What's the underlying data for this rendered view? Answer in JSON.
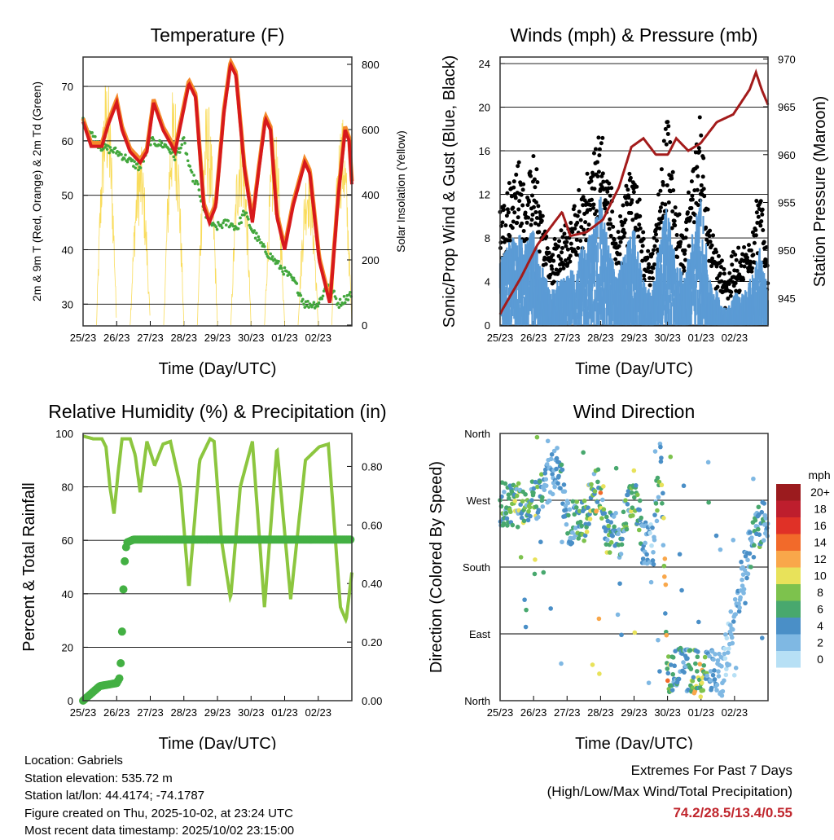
{
  "footer": {
    "location": "Location: Gabriels",
    "elevation": "Station elevation: 535.72 m",
    "latlon": "Station lat/lon: 44.4174; -74.1787",
    "created": "Figure created on Thu, 2025-10-02, at 23:24 UTC",
    "recent": "Most recent data timestamp: 2025/10/02 23:15:00",
    "extremes_title": "Extremes For Past 7 Days",
    "extremes_sub": "(High/Low/Max Wind/Total Precipitation)",
    "extremes_value": "74.2/28.5/13.4/0.55"
  },
  "colors": {
    "red": "#d7191c",
    "orange": "#f58a2b",
    "green": "#43a73d",
    "yellow": "#f9dc5c",
    "black": "#000000",
    "blue": "#5b9bd5",
    "maroon": "#a31b1b",
    "rh": "#8cc63f",
    "precip": "#43b043"
  },
  "chart_data": [
    {
      "type": "line",
      "title": "Temperature (F)",
      "xlabel": "Time (Day/UTC)",
      "ylabel": "2m & 9m T (Red, Orange) & 2m Td (Green)",
      "ylabel_right": "Solar Insolation (Yellow)",
      "xticks": [
        "25/23",
        "26/23",
        "27/23",
        "28/23",
        "29/23",
        "30/23",
        "01/23",
        "02/23"
      ],
      "yticks": [
        30,
        40,
        50,
        60,
        70
      ],
      "yticks_right": [
        0,
        200,
        400,
        600,
        800
      ],
      "xlim": [
        0,
        8
      ],
      "ylim": [
        26,
        75.4
      ],
      "ylim_right": [
        -2.5,
        822.5
      ],
      "series": [
        {
          "name": "2m T",
          "x": [
            0,
            0.24,
            0.56,
            0.75,
            1.0,
            1.16,
            1.4,
            1.7,
            1.9,
            2.1,
            2.38,
            2.74,
            3.15,
            3.35,
            3.59,
            3.76,
            3.95,
            4.19,
            4.39,
            4.55,
            4.8,
            5.04,
            5.24,
            5.43,
            5.58,
            5.77,
            6.0,
            6.25,
            6.6,
            6.75,
            7.03,
            7.35,
            7.6,
            7.8,
            7.92,
            8.0
          ],
          "y": [
            63.5,
            59,
            59,
            63,
            67,
            62,
            58,
            56,
            58,
            67,
            62,
            58,
            70.5,
            68,
            48,
            45,
            48,
            65,
            74,
            72,
            55,
            45,
            55,
            64,
            62,
            46,
            40,
            48,
            56,
            54,
            38,
            30,
            50,
            62,
            60,
            52
          ]
        },
        {
          "name": "2m Td",
          "x": [
            0,
            0.5,
            1.0,
            1.7,
            2.0,
            2.5,
            2.74,
            3.0,
            3.2,
            3.4,
            3.6,
            3.9,
            4.3,
            4.6,
            4.8,
            5.0,
            5.4,
            5.7,
            6.0,
            6.3,
            6.6,
            7.0,
            7.3,
            7.6,
            8.0
          ],
          "y": [
            63.5,
            59,
            58,
            55,
            60,
            59,
            57,
            60,
            54,
            52,
            47,
            44,
            45,
            44,
            47,
            44,
            40,
            38,
            36,
            34,
            30,
            30,
            34,
            30,
            32
          ]
        },
        {
          "name": "Solar Insolation",
          "day_peak_x": [
            0.7,
            1.7,
            2.7,
            3.7,
            4.7,
            5.7,
            6.7,
            7.7
          ],
          "day_peak_y": [
            780,
            560,
            740,
            700,
            640,
            600,
            520,
            650
          ]
        }
      ]
    },
    {
      "type": "scatter",
      "title": "Winds (mph) & Pressure (mb)",
      "xlabel": "Time (Day/UTC)",
      "ylabel": "Sonic/Prop Wind & Gust (Blue, Black)",
      "ylabel_right": "Station Pressure (Maroon)",
      "xticks": [
        "25/23",
        "26/23",
        "27/23",
        "28/23",
        "29/23",
        "30/23",
        "01/23",
        "02/23"
      ],
      "yticks": [
        0,
        4,
        8,
        12,
        16,
        20,
        24
      ],
      "yticks_right": [
        945,
        950,
        955,
        960,
        965,
        970
      ],
      "xlim": [
        0,
        8
      ],
      "ylim": [
        -0.07,
        24.6
      ],
      "ylim_right": [
        942.1,
        970.2
      ],
      "series": [
        {
          "name": "Wind",
          "x": [
            0,
            0.25,
            0.5,
            0.75,
            1,
            1.25,
            1.5,
            1.75,
            2,
            2.25,
            2.5,
            2.75,
            3,
            3.25,
            3.5,
            3.75,
            4,
            4.25,
            4.5,
            4.75,
            5,
            5.25,
            5.5,
            5.75,
            6,
            6.25,
            6.5,
            6.75,
            7,
            7.25,
            7.5,
            7.75,
            8
          ],
          "y": [
            4,
            5,
            6,
            5,
            6,
            4,
            2,
            3,
            3,
            4,
            5,
            6,
            8,
            5,
            3,
            5,
            6,
            3,
            2,
            5,
            8,
            4,
            3,
            6,
            8,
            3,
            2,
            1,
            2,
            2,
            3,
            5,
            2
          ]
        },
        {
          "name": "Gust",
          "max": 13.4
        },
        {
          "name": "Pressure",
          "x": [
            0,
            0.07,
            0.63,
            1.12,
            1.85,
            2.1,
            2.58,
            3.07,
            3.55,
            3.92,
            4.28,
            4.65,
            5.01,
            5.26,
            5.62,
            5.99,
            6.47,
            6.96,
            7.45,
            7.64,
            7.81,
            8.0
          ],
          "y": [
            943.3,
            943.8,
            947.2,
            950.6,
            954,
            951.5,
            951.9,
            953.2,
            956.6,
            960.8,
            961.7,
            960,
            960,
            961.7,
            960.4,
            961.2,
            963.4,
            964.2,
            966.8,
            968.6,
            966.8,
            965.2
          ]
        }
      ]
    },
    {
      "type": "line",
      "title": "Relative Humidity (%) & Precipitation (in)",
      "xlabel": "Time (Day/UTC)",
      "ylabel": "Percent & Total Rainfall",
      "xticks": [
        "25/23",
        "26/23",
        "27/23",
        "28/23",
        "29/23",
        "30/23",
        "01/23",
        "02/23"
      ],
      "yticks": [
        0,
        20,
        40,
        60,
        80,
        100
      ],
      "yticks_right": [
        "0.00",
        "0.20",
        "0.40",
        "0.60",
        "0.80"
      ],
      "xlim": [
        0,
        8
      ],
      "ylim": [
        0,
        100
      ],
      "ylim_right": [
        0,
        0.9125
      ],
      "series": [
        {
          "name": "RH",
          "x": [
            0,
            0.3,
            0.56,
            0.68,
            0.8,
            0.92,
            1.04,
            1.16,
            1.4,
            1.55,
            1.7,
            1.9,
            2.13,
            2.38,
            2.6,
            2.9,
            3.15,
            3.47,
            3.78,
            3.9,
            4.12,
            4.39,
            4.68,
            5.04,
            5.4,
            5.77,
            6.18,
            6.62,
            7.03,
            7.3,
            7.66,
            7.83,
            8.0
          ],
          "y": [
            99,
            98,
            98,
            95,
            80,
            70,
            85,
            98,
            98,
            92,
            78,
            97,
            88,
            96,
            97,
            80,
            42,
            90,
            98,
            97,
            60,
            38,
            80,
            97,
            35,
            95,
            38,
            90,
            95,
            96,
            35,
            30,
            48
          ]
        },
        {
          "name": "Precipitation",
          "x": [
            0,
            0.2,
            0.4,
            0.5,
            1.0,
            1.1,
            1.15,
            1.2,
            1.25,
            1.3,
            1.5,
            8.0
          ],
          "y": [
            0,
            0.02,
            0.04,
            0.05,
            0.06,
            0.08,
            0.2,
            0.38,
            0.5,
            0.54,
            0.55,
            0.55
          ]
        }
      ]
    },
    {
      "type": "scatter",
      "title": "Wind Direction",
      "xlabel": "Time (Day/UTC)",
      "ylabel": "Direction (Colored By Speed)",
      "xticks": [
        "25/23",
        "26/23",
        "27/23",
        "28/23",
        "29/23",
        "30/23",
        "01/23",
        "02/23"
      ],
      "yticks": [
        "North",
        "West",
        "South",
        "East",
        "North"
      ],
      "xlim": [
        0,
        8
      ],
      "ylim": [
        0,
        360
      ],
      "legend": {
        "title": "mph",
        "labels": [
          "20+",
          "18",
          "16",
          "14",
          "12",
          "10",
          "8",
          "6",
          "4",
          "2",
          "0"
        ],
        "colors": [
          "#9b1b1e",
          "#be1e2d",
          "#e03127",
          "#f26a2a",
          "#f9a74a",
          "#e8e25a",
          "#7dc24d",
          "#48a86e",
          "#4a8fc7",
          "#7fb8e3",
          "#b7e0f5"
        ]
      },
      "series": [
        {
          "name": "Direction",
          "x": [
            0,
            0.5,
            1.0,
            1.5,
            1.75,
            2.0,
            2.5,
            2.75,
            3.0,
            3.2,
            3.6,
            4.0,
            4.25,
            4.6,
            4.8,
            5.0,
            5.2,
            5.6,
            6.0,
            6.4,
            6.6,
            7.0,
            7.4,
            7.8,
            8.0
          ],
          "y": [
            265,
            262,
            268,
            300,
            320,
            240,
            238,
            280,
            285,
            225,
            222,
            282,
            210,
            212,
            350,
            40,
            45,
            40,
            38,
            42,
            30,
            120,
            200,
            240,
            250
          ]
        }
      ]
    }
  ]
}
